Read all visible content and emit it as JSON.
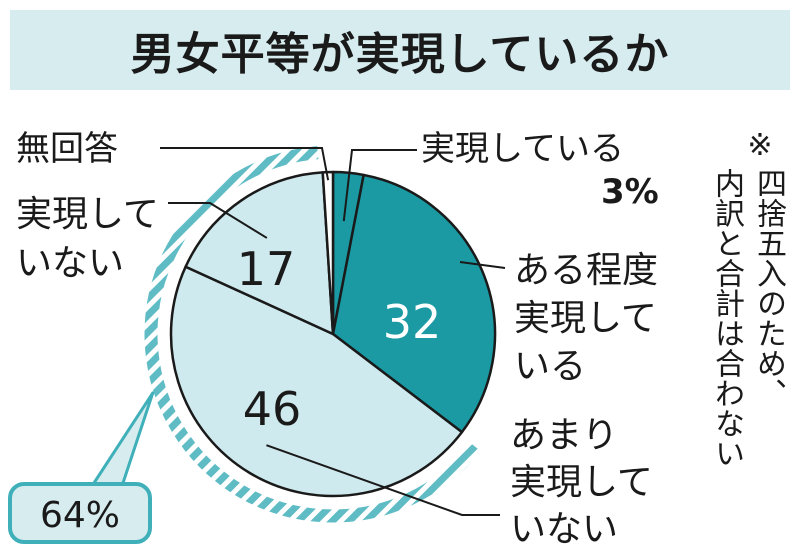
{
  "title": "男女平等が実現しているか",
  "chart_data": {
    "type": "pie",
    "title": "男女平等が実現しているか",
    "unit": "%",
    "slices": [
      {
        "label": "実現している",
        "value": 3,
        "color": "#1b9aa3"
      },
      {
        "label": "ある程度実現している",
        "value": 32,
        "color": "#1b9aa3"
      },
      {
        "label": "あまり実現していない",
        "value": 46,
        "color": "#cfeaee"
      },
      {
        "label": "実現していない",
        "value": 17,
        "color": "#cfeaee"
      },
      {
        "label": "無回答",
        "value": 1,
        "color": "#ffffff"
      }
    ],
    "inside_labels": {
      "s1": "32",
      "s2": "46",
      "s3": "17"
    },
    "outer_labels": {
      "s0_line1": "実現している",
      "s0_line2": "3%",
      "s1_line1": "ある程度",
      "s1_line2": "実現して",
      "s1_line3": "いる",
      "s2_line1": "あまり",
      "s2_line2": "実現して",
      "s2_line3": "いない",
      "s3_line1": "実現して",
      "s3_line2": "いない",
      "s4_line1": "無回答"
    },
    "group_total": {
      "label": "64%",
      "members": [
        "あまり実現していない",
        "実現していない"
      ]
    }
  },
  "note": {
    "mark": "※",
    "col1": "四捨五入のため、",
    "col2": "内訳と合計は合わない"
  }
}
